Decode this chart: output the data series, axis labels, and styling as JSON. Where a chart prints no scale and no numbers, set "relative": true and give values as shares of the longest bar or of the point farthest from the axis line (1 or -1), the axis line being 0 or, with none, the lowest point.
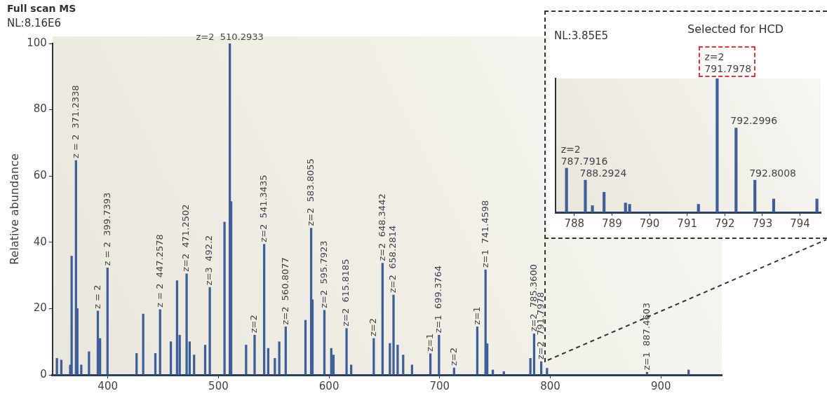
{
  "chart_data": [
    {
      "type": "bar",
      "title": "Full scan MS",
      "subtitle": "NL:8.16E6",
      "ylabel": "Relative abundance",
      "color": "#3d5e99",
      "x": [
        354,
        358,
        366,
        367.3,
        371.2338,
        372.5,
        376,
        383,
        391,
        393,
        399.7393,
        426,
        432,
        443,
        447.2578,
        457,
        462.6,
        465,
        471.2502,
        474,
        478,
        488,
        492.2,
        505.5,
        510.2933,
        511.5,
        525,
        532.7,
        541.3435,
        545,
        551,
        555,
        560.8077,
        578.7,
        583.8055,
        585,
        595.7923,
        602,
        604,
        615.8185,
        620,
        640.4,
        648.3442,
        655,
        658.2814,
        662,
        667,
        675,
        691.6,
        699.3764,
        713,
        734,
        741.4598,
        743,
        748,
        758,
        782,
        785.36,
        791.7978,
        797,
        887.4603,
        925
      ],
      "values": [
        5,
        4.5,
        3,
        35.8,
        64.7,
        20,
        3,
        7,
        19.3,
        11,
        32.3,
        6.5,
        18.4,
        6.5,
        19.7,
        10,
        28.4,
        12,
        30.5,
        10,
        6,
        9,
        26.4,
        46.1,
        100,
        52.3,
        9,
        12,
        39.4,
        8,
        5,
        10,
        14.5,
        16.5,
        44.3,
        22.7,
        19.5,
        8,
        6,
        14,
        3,
        11,
        33.7,
        9.5,
        24.1,
        9,
        6,
        3,
        6.4,
        12,
        2.1,
        14.5,
        31.7,
        9.4,
        1.5,
        1,
        5,
        12.4,
        4,
        2,
        0.8,
        1.5
      ],
      "xlim": [
        350,
        955
      ],
      "xticks": [
        400,
        500,
        600,
        700,
        800,
        900
      ],
      "ylim": [
        0,
        100
      ],
      "yticks": [
        0,
        20,
        40,
        60,
        80,
        100
      ],
      "annotations": [
        {
          "text": "z = 2  371.2338",
          "x": 371.2338,
          "y": 64.7
        },
        {
          "text": "z = 2",
          "x": 391,
          "y": 19.3
        },
        {
          "text": "z = 2  399.7393",
          "x": 399.7393,
          "y": 32.3
        },
        {
          "text": "z = 2  447.2578",
          "x": 447.2578,
          "y": 19.7
        },
        {
          "text": "z=2  471.2502",
          "x": 471.2502,
          "y": 30.5
        },
        {
          "text": "z=3  492.2",
          "x": 492.2,
          "y": 26.4
        },
        {
          "text": "z=2  510.2933",
          "x": 510.2933,
          "y": 100
        },
        {
          "text": "z=2",
          "x": 532.7,
          "y": 12
        },
        {
          "text": "z=2  541.3435",
          "x": 541.3435,
          "y": 39.4
        },
        {
          "text": "z=2  560.8077",
          "x": 560.8077,
          "y": 14.5
        },
        {
          "text": "z=2  583.8055",
          "x": 583.8055,
          "y": 44.3
        },
        {
          "text": "z=2  595.7923",
          "x": 595.7923,
          "y": 19.5
        },
        {
          "text": "z=2  615.8185",
          "x": 615.8185,
          "y": 14
        },
        {
          "text": "z=2",
          "x": 640.4,
          "y": 11
        },
        {
          "text": "z=2  648.3442",
          "x": 648.3442,
          "y": 33.7
        },
        {
          "text": "z=2  658.2814",
          "x": 658.2814,
          "y": 24.1
        },
        {
          "text": "z=1",
          "x": 691.6,
          "y": 6.4
        },
        {
          "text": "z=1  699.3764",
          "x": 699.3764,
          "y": 12
        },
        {
          "text": "z=2",
          "x": 713,
          "y": 2.1
        },
        {
          "text": "z=1",
          "x": 734,
          "y": 14.5
        },
        {
          "text": "z=1  741.4598",
          "x": 741.4598,
          "y": 31.7
        },
        {
          "text": "z=2  785.3600",
          "x": 785.36,
          "y": 12.4
        },
        {
          "text": "z=2  791.7978",
          "x": 791.7978,
          "y": 4
        },
        {
          "text": "z=1  887.4603",
          "x": 887.4603,
          "y": 0.8
        }
      ]
    },
    {
      "type": "bar",
      "subtitle": "NL:3.85E5",
      "color": "#3d5e99",
      "relative": true,
      "tick_labels": "x",
      "x": [
        787.7916,
        788.2924,
        788.48,
        788.79,
        789.36,
        789.47,
        791.3,
        791.7978,
        792.2996,
        792.8008,
        793.3,
        794.45
      ],
      "values": [
        0.33,
        0.24,
        0.05,
        0.15,
        0.07,
        0.06,
        0.06,
        1,
        0.63,
        0.24,
        0.1,
        0.1
      ],
      "xlim": [
        787.5,
        794.55
      ],
      "xticks": [
        788,
        789,
        790,
        791,
        792,
        793,
        794
      ],
      "annotations": [
        "Selected for HCD",
        {
          "text": "z=2\n787.7916",
          "x": 787.7916,
          "y": 0.33
        },
        {
          "text": "788.2924",
          "x": 788.2924,
          "y": 0.24
        },
        {
          "text": "z=2\n791.7978",
          "x": 791.7978,
          "y": 1
        },
        {
          "text": "792.2996",
          "x": 792.2996,
          "y": 0.63
        },
        {
          "text": "792.8008",
          "x": 792.8008,
          "y": 0.24
        }
      ]
    }
  ]
}
